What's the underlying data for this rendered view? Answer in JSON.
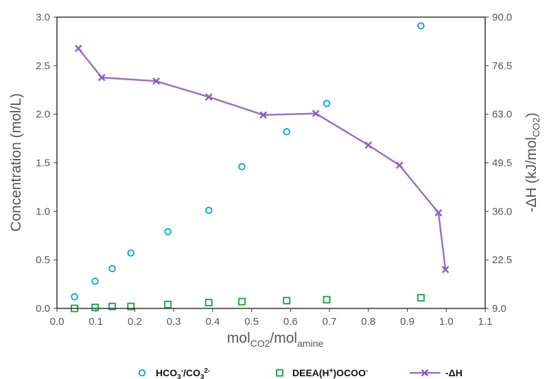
{
  "chart_data": {
    "type": "scatter",
    "xlabel": {
      "main": "mol",
      "sub1": "CO2",
      "sep": "/mol",
      "sub2": "amine"
    },
    "ylabel": "Concentration (mol/L)",
    "y2label": {
      "main": "-ΔH (kJ/mol",
      "sub": "CO2",
      "end": ")"
    },
    "xlim": [
      0.0,
      1.1
    ],
    "ylim": [
      0.0,
      3.0
    ],
    "y2lim": [
      9.0,
      90.0
    ],
    "xticks": [
      "0.0",
      "0.1",
      "0.2",
      "0.3",
      "0.4",
      "0.5",
      "0.6",
      "0.7",
      "0.8",
      "0.9",
      "1.0",
      "1.1"
    ],
    "yticks": [
      "0.0",
      "0.5",
      "1.0",
      "1.5",
      "2.0",
      "2.5",
      "3.0"
    ],
    "y2ticks": [
      "9.0",
      "22.5",
      "36.0",
      "49.5",
      "63.0",
      "76.5",
      "90.0"
    ],
    "grid": false,
    "legend_position": "bottom",
    "series": [
      {
        "name": "HCO3-/CO32-",
        "legend": {
          "a": "HCO",
          "b": "3",
          "c": "-",
          "d": "/CO",
          "e": "3",
          "f": "2-"
        },
        "marker": "circle",
        "color": "#1aa7d8",
        "axis": "left",
        "x": [
          0.045,
          0.098,
          0.142,
          0.19,
          0.285,
          0.39,
          0.475,
          0.59,
          0.693,
          0.935
        ],
        "y": [
          0.12,
          0.28,
          0.41,
          0.57,
          0.79,
          1.01,
          1.46,
          1.82,
          2.11,
          2.91
        ]
      },
      {
        "name": "DEEA(H+)OCOO-",
        "legend": {
          "a": "DEEA(H",
          "b": "+",
          "c": ")OCOO",
          "d": "-"
        },
        "marker": "square",
        "color": "#22a84a",
        "axis": "left",
        "x": [
          0.045,
          0.098,
          0.142,
          0.19,
          0.285,
          0.39,
          0.475,
          0.59,
          0.693,
          0.935
        ],
        "y": [
          0.0,
          0.01,
          0.02,
          0.02,
          0.04,
          0.06,
          0.07,
          0.08,
          0.09,
          0.11
        ]
      },
      {
        "name": "-ΔH",
        "marker": "x-line",
        "color": "#9b6fc4",
        "axis": "right",
        "x": [
          0.055,
          0.115,
          0.255,
          0.39,
          0.53,
          0.665,
          0.8,
          0.88,
          0.98,
          0.998
        ],
        "y": [
          81.3,
          73.2,
          72.2,
          67.8,
          62.8,
          63.2,
          54.4,
          48.8,
          35.6,
          19.8
        ]
      }
    ]
  }
}
